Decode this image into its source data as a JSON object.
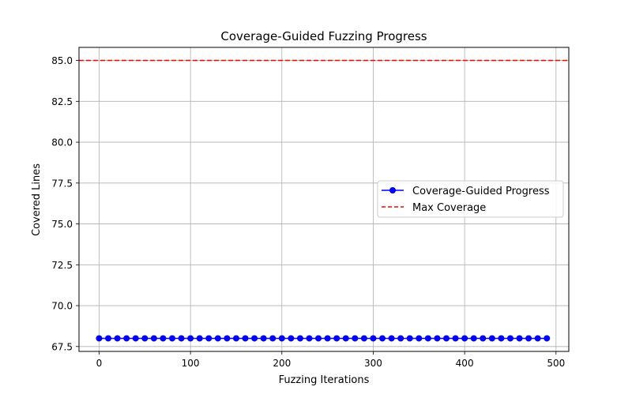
{
  "chart_data": {
    "type": "line",
    "title": "Coverage-Guided Fuzzing Progress",
    "xlabel": "Fuzzing Iterations",
    "ylabel": "Covered Lines",
    "xlim": [
      -22,
      514
    ],
    "ylim": [
      67.2,
      85.8
    ],
    "xticks": [
      0,
      100,
      200,
      300,
      400,
      500
    ],
    "yticks": [
      67.5,
      70.0,
      72.5,
      75.0,
      77.5,
      80.0,
      82.5,
      85.0
    ],
    "grid": true,
    "legend_position": "center-right",
    "series": [
      {
        "name": "Coverage-Guided Progress",
        "color": "#0000ff",
        "linestyle": "solid",
        "marker": "circle",
        "x": [
          0,
          10,
          20,
          30,
          40,
          50,
          60,
          70,
          80,
          90,
          100,
          110,
          120,
          130,
          140,
          150,
          160,
          170,
          180,
          190,
          200,
          210,
          220,
          230,
          240,
          250,
          260,
          270,
          280,
          290,
          300,
          310,
          320,
          330,
          340,
          350,
          360,
          370,
          380,
          390,
          400,
          410,
          420,
          430,
          440,
          450,
          460,
          470,
          480,
          490
        ],
        "y": [
          68,
          68,
          68,
          68,
          68,
          68,
          68,
          68,
          68,
          68,
          68,
          68,
          68,
          68,
          68,
          68,
          68,
          68,
          68,
          68,
          68,
          68,
          68,
          68,
          68,
          68,
          68,
          68,
          68,
          68,
          68,
          68,
          68,
          68,
          68,
          68,
          68,
          68,
          68,
          68,
          68,
          68,
          68,
          68,
          68,
          68,
          68,
          68,
          68,
          68
        ]
      }
    ],
    "hlines": [
      {
        "name": "Max Coverage",
        "y": 85.0,
        "color": "#ff0000",
        "linestyle": "dashed"
      }
    ]
  }
}
